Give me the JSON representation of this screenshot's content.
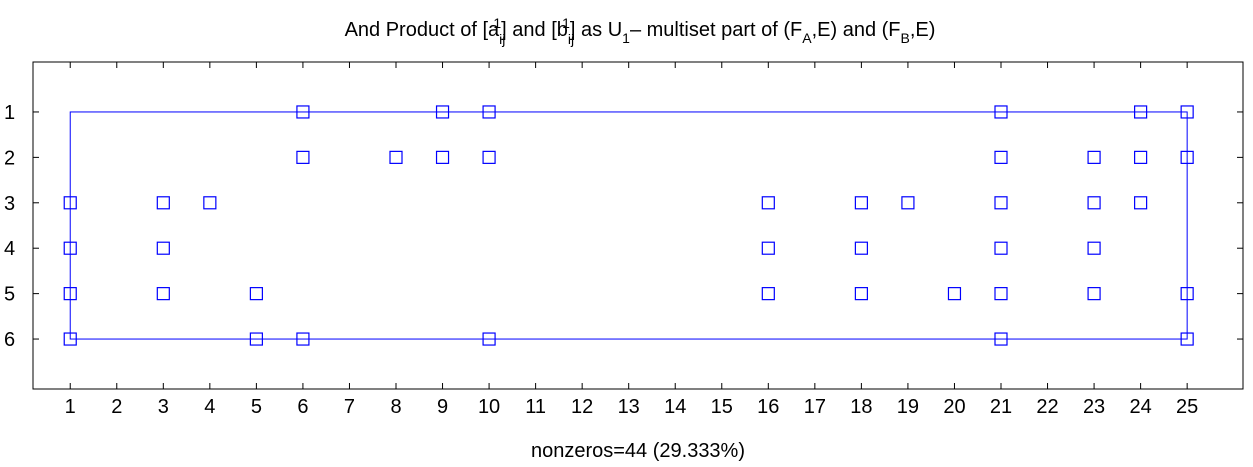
{
  "chart_data": {
    "type": "scatter",
    "title": {
      "prefix": "And Product of [a",
      "a_sub": "ij",
      "a_sup": "1",
      "mid1": "] and [b",
      "b_sub": "ij",
      "b_sup": "1",
      "mid2": "] as U",
      "u_sub": "1",
      "mid3": "– multiset part of (F",
      "fa_sub": "A",
      "mid4": ",E) and (F",
      "fb_sub": "B",
      "suffix": ",E)"
    },
    "xlabel": "nonzeros=44 (29.333%)",
    "ylabel": "",
    "xlim": [
      0.2,
      26.2
    ],
    "ylim": [
      7.1,
      -0.1
    ],
    "y_reversed": true,
    "x_ticks": [
      1,
      2,
      3,
      4,
      5,
      6,
      7,
      8,
      9,
      10,
      11,
      12,
      13,
      14,
      15,
      16,
      17,
      18,
      19,
      20,
      21,
      22,
      23,
      24,
      25
    ],
    "y_ticks": [
      1,
      2,
      3,
      4,
      5,
      6
    ],
    "grid": false,
    "marker": "square",
    "marker_color": "#0000ff",
    "points": [
      [
        6,
        1
      ],
      [
        9,
        1
      ],
      [
        10,
        1
      ],
      [
        21,
        1
      ],
      [
        24,
        1
      ],
      [
        25,
        1
      ],
      [
        6,
        2
      ],
      [
        8,
        2
      ],
      [
        9,
        2
      ],
      [
        10,
        2
      ],
      [
        21,
        2
      ],
      [
        23,
        2
      ],
      [
        24,
        2
      ],
      [
        25,
        2
      ],
      [
        1,
        3
      ],
      [
        3,
        3
      ],
      [
        4,
        3
      ],
      [
        16,
        3
      ],
      [
        18,
        3
      ],
      [
        19,
        3
      ],
      [
        21,
        3
      ],
      [
        23,
        3
      ],
      [
        24,
        3
      ],
      [
        1,
        4
      ],
      [
        3,
        4
      ],
      [
        16,
        4
      ],
      [
        18,
        4
      ],
      [
        21,
        4
      ],
      [
        23,
        4
      ],
      [
        1,
        5
      ],
      [
        3,
        5
      ],
      [
        5,
        5
      ],
      [
        16,
        5
      ],
      [
        18,
        5
      ],
      [
        20,
        5
      ],
      [
        21,
        5
      ],
      [
        23,
        5
      ],
      [
        25,
        5
      ],
      [
        1,
        6
      ],
      [
        5,
        6
      ],
      [
        6,
        6
      ],
      [
        10,
        6
      ],
      [
        21,
        6
      ],
      [
        25,
        6
      ]
    ],
    "bounding_rect": {
      "x": [
        1,
        25
      ],
      "y": [
        1,
        6
      ]
    }
  }
}
